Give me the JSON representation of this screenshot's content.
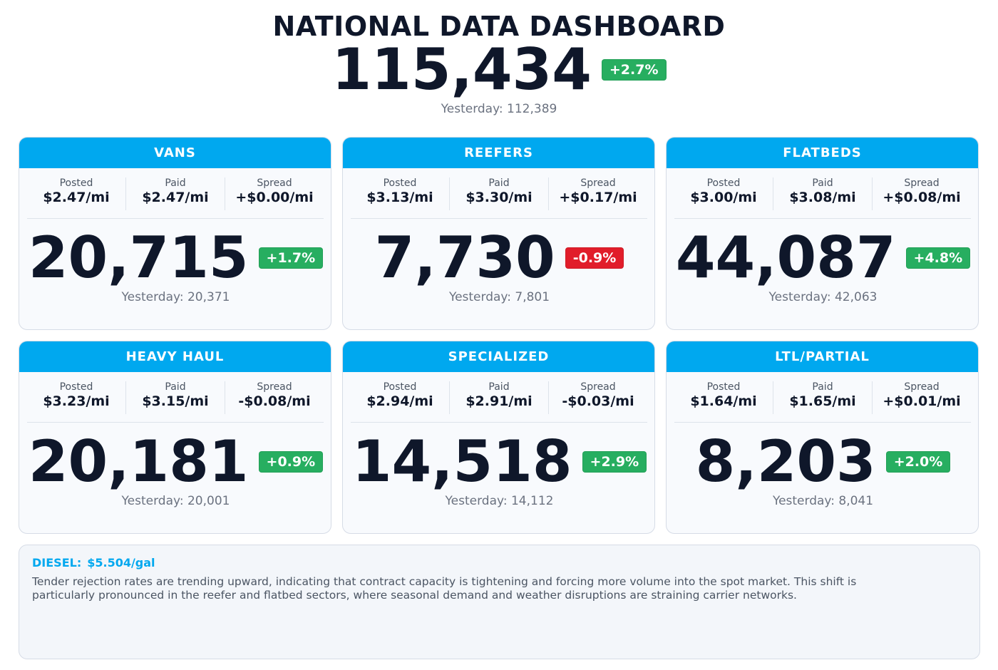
{
  "header": {
    "title": "NATIONAL DATA DASHBOARD",
    "total": "115,434",
    "change": "+2.7%",
    "yesterday": "Yesterday: 112,389"
  },
  "labels": {
    "posted": "Posted",
    "paid": "Paid",
    "spread": "Spread"
  },
  "cards": [
    {
      "name": "VANS",
      "posted": "$2.47/mi",
      "paid": "$2.47/mi",
      "spread": "+$0.00/mi",
      "value": "20,715",
      "change": "+1.7%",
      "direction": "up",
      "yesterday": "Yesterday: 20,371"
    },
    {
      "name": "REEFERS",
      "posted": "$3.13/mi",
      "paid": "$3.30/mi",
      "spread": "+$0.17/mi",
      "value": "7,730",
      "change": "-0.9%",
      "direction": "down",
      "yesterday": "Yesterday: 7,801"
    },
    {
      "name": "FLATBEDS",
      "posted": "$3.00/mi",
      "paid": "$3.08/mi",
      "spread": "+$0.08/mi",
      "value": "44,087",
      "change": "+4.8%",
      "direction": "up",
      "yesterday": "Yesterday: 42,063"
    },
    {
      "name": "HEAVY HAUL",
      "posted": "$3.23/mi",
      "paid": "$3.15/mi",
      "spread": "-$0.08/mi",
      "value": "20,181",
      "change": "+0.9%",
      "direction": "up",
      "yesterday": "Yesterday: 20,001"
    },
    {
      "name": "SPECIALIZED",
      "posted": "$2.94/mi",
      "paid": "$2.91/mi",
      "spread": "-$0.03/mi",
      "value": "14,518",
      "change": "+2.9%",
      "direction": "up",
      "yesterday": "Yesterday: 14,112"
    },
    {
      "name": "LTL/PARTIAL",
      "posted": "$1.64/mi",
      "paid": "$1.65/mi",
      "spread": "+$0.01/mi",
      "value": "8,203",
      "change": "+2.0%",
      "direction": "up",
      "yesterday": "Yesterday: 8,041"
    }
  ],
  "notes": {
    "diesel_label": "DIESEL:",
    "diesel_value": "$5.504/gal",
    "commentary": "Tender rejection rates are trending upward, indicating that contract capacity is tightening and forcing more volume into the spot market. This shift is particularly pronounced in the reefer and flatbed sectors, where seasonal demand and weather disruptions are straining carrier networks."
  },
  "colors": {
    "accent": "#00a8ef",
    "up": "#27ae60",
    "down": "#e11d2a",
    "text": "#0f172a",
    "muted": "#6b7280"
  }
}
